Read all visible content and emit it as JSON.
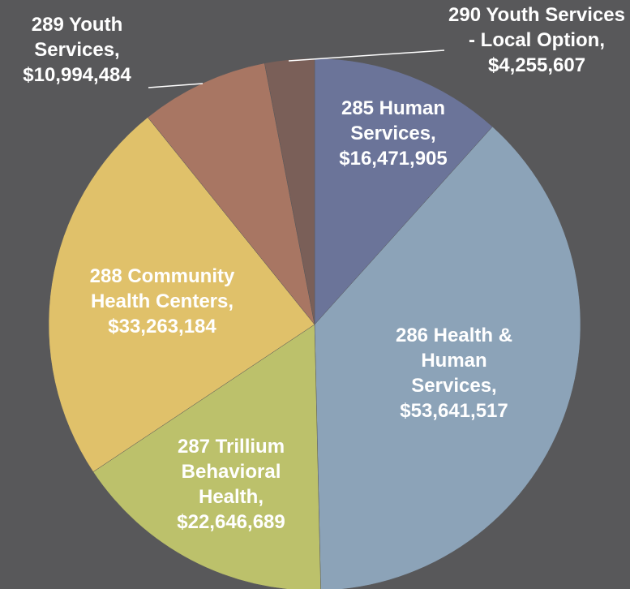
{
  "chart_data": {
    "type": "pie",
    "categories": [
      "285 Human Services,",
      "286 Health & Human Services,",
      "287 Trillium Behavioral Health,",
      "288 Community Health Centers,",
      "289 Youth Services,",
      "290 Youth Services - Local Option,"
    ],
    "values": [
      16471905,
      53641517,
      22646689,
      33263184,
      10994484,
      4255607
    ],
    "value_labels": [
      "$16,471,905",
      "$53,641,517",
      "$22,646,689",
      "$33,263,184",
      "$10,994,484",
      "$4,255,607"
    ],
    "colors": [
      "#6b7499",
      "#8ca3b8",
      "#bcc16b",
      "#e0c16a",
      "#a87663",
      "#7a5f58"
    ]
  }
}
